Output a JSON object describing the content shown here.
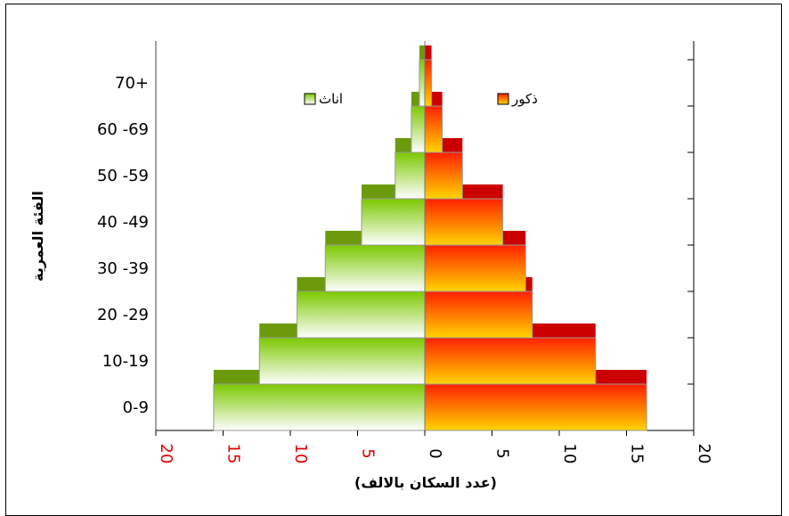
{
  "chart_data": {
    "type": "bar",
    "subtype": "population-pyramid",
    "categories": [
      "0-9",
      "10-19",
      "20 -29",
      "30 -39",
      "40 -49",
      "50 -59",
      "60 -69",
      "70+"
    ],
    "series": [
      {
        "name": "ذكور",
        "side": "right",
        "values": [
          16.5,
          12.7,
          8.0,
          7.5,
          5.8,
          2.8,
          1.3,
          0.5
        ],
        "back_values": [
          16.5,
          12.7,
          8.0,
          7.5,
          5.8,
          2.8,
          1.3,
          0.5
        ],
        "front_values": [
          16.5,
          12.7,
          8.0,
          7.5,
          5.8,
          2.8,
          1.3,
          0.5
        ],
        "offset_values": [
          12.7,
          8.0,
          7.5,
          5.8,
          2.8,
          1.3,
          0.5,
          0.0
        ],
        "color_front_top": "#ff2000",
        "color_front_bottom": "#ffd400",
        "color_back": "#cc0000"
      },
      {
        "name": "اناث",
        "side": "left",
        "values": [
          15.7,
          12.3,
          9.5,
          7.4,
          4.7,
          2.2,
          1.0,
          0.4
        ],
        "offset_values": [
          12.3,
          9.5,
          7.4,
          4.7,
          2.2,
          1.0,
          0.4,
          0.0
        ],
        "color_front_top": "#7cc800",
        "color_front_bottom": "#ffffff",
        "color_back": "#6b9a0d"
      }
    ],
    "xlabel": "(عدد السكان بالالف)",
    "ylabel": "الفئة العمرية",
    "xlim": [
      -20,
      20
    ],
    "xticks": [
      20,
      15,
      10,
      5,
      0,
      5,
      10,
      15,
      20
    ],
    "xtick_colors": {
      "negative": "#e00000",
      "positive": "#000000"
    },
    "legend_placement": "top-center",
    "grid": false
  }
}
